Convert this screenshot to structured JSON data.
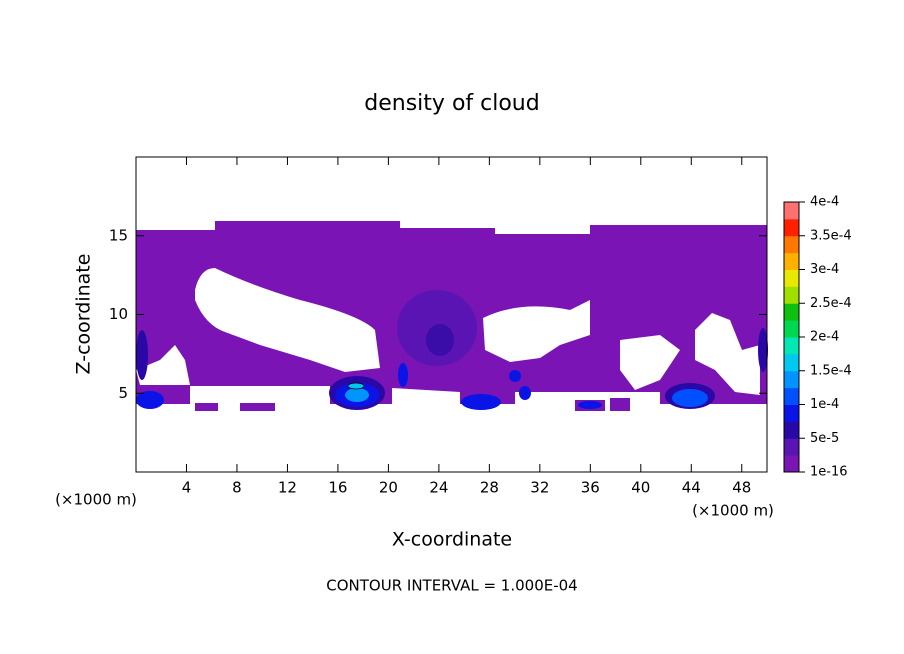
{
  "chart_data": {
    "type": "contour",
    "title": "density of cloud",
    "x_label": "X-coordinate",
    "y_label": "Z-coordinate",
    "x_unit": "(×1000 m)",
    "y_unit": "(×1000 m)",
    "footnote": "CONTOUR INTERVAL = 1.000E-04",
    "xlim": [
      0,
      50
    ],
    "ylim": [
      0,
      20
    ],
    "xticks": [
      4,
      8,
      12,
      16,
      20,
      24,
      28,
      32,
      36,
      40,
      44,
      48
    ],
    "yticks": [
      5,
      10,
      15
    ],
    "colorbar": {
      "ticks": [
        {
          "value": 1e-16,
          "label": "1e-16"
        },
        {
          "value": 5e-05,
          "label": "5e-5"
        },
        {
          "value": 0.0001,
          "label": "1e-4"
        },
        {
          "value": 0.00015,
          "label": "1.5e-4"
        },
        {
          "value": 0.0002,
          "label": "2e-4"
        },
        {
          "value": 0.00025,
          "label": "2.5e-4"
        },
        {
          "value": 0.0003,
          "label": "3e-4"
        },
        {
          "value": 0.00035,
          "label": "3.5e-4"
        },
        {
          "value": 0.0004,
          "label": "4e-4"
        }
      ],
      "colors": [
        "#7a14b4",
        "#5a14b4",
        "#2a08a8",
        "#0a14e6",
        "#0050ff",
        "#0094ff",
        "#00c8f0",
        "#00e8b4",
        "#00d850",
        "#10c010",
        "#a0e000",
        "#e8e800",
        "#ffb000",
        "#ff7800",
        "#ff2000",
        "#ff7070"
      ]
    }
  }
}
